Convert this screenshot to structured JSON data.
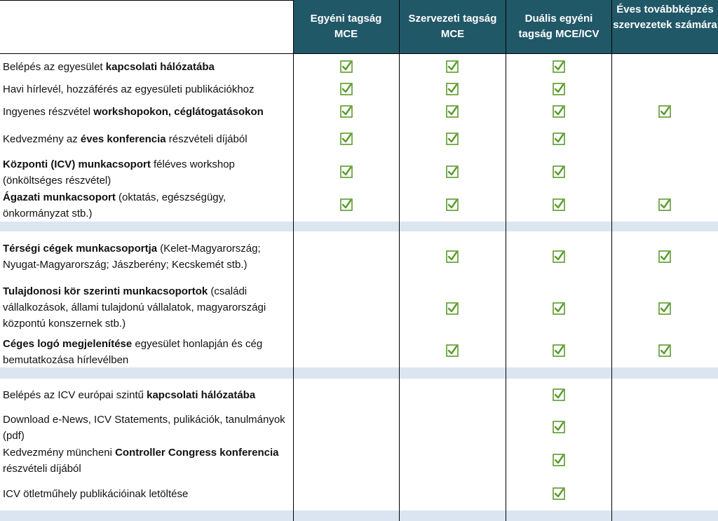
{
  "columns": [
    "Egyéni tagság MCE",
    "Szervezeti tagság MCE",
    "Duális egyéni tagság MCE/ICV",
    "Éves továbbképzés szervezetek számára"
  ],
  "colors": {
    "header_bg": "#215868",
    "band": "#dbe5f1",
    "check": "#5b9a2c"
  },
  "sections": [
    {
      "rows": [
        {
          "parts": [
            {
              "t": "Belépés az egyesület ",
              "b": false
            },
            {
              "t": "kapcsolati hálózatába",
              "b": true
            }
          ],
          "checks": [
            true,
            true,
            true,
            false
          ]
        },
        {
          "parts": [
            {
              "t": "Havi hírlevél, hozzáférés az egyesületi publikációkhoz",
              "b": false
            }
          ],
          "checks": [
            true,
            true,
            true,
            false
          ]
        },
        {
          "parts": [
            {
              "t": "Ingyenes részvétel ",
              "b": false
            },
            {
              "t": "workshopokon, céglátogatásokon",
              "b": true
            }
          ],
          "checks": [
            true,
            true,
            true,
            true
          ]
        },
        {
          "parts": [
            {
              "t": "Kedvezmény az ",
              "b": false
            },
            {
              "t": "éves konferencia",
              "b": true
            },
            {
              "t": " részvételi díjából",
              "b": false
            }
          ],
          "checks": [
            true,
            true,
            true,
            false
          ]
        },
        {
          "parts": [
            {
              "t": "Központi (ICV) munkacsoport",
              "b": true
            },
            {
              "t": " féléves workshop (önköltséges részvétel)",
              "b": false
            }
          ],
          "checks": [
            true,
            true,
            true,
            false
          ]
        },
        {
          "parts": [
            {
              "t": "Ágazati munkacsoport",
              "b": true
            },
            {
              "t": " (oktatás, egészségügy, önkormányzat stb.)",
              "b": false
            }
          ],
          "checks": [
            true,
            true,
            true,
            true
          ]
        }
      ]
    },
    {
      "rows": [
        {
          "parts": [
            {
              "t": "Térségi cégek munkacsoportja",
              "b": true
            },
            {
              "t": " (Kelet-Magyarország; Nyugat-Magyarország; Jászberény; Kecskemét stb.)",
              "b": false
            }
          ],
          "checks": [
            false,
            true,
            true,
            true
          ]
        },
        {
          "parts": [
            {
              "t": "Tulajdonosi kör szerinti munkacsoportok",
              "b": true
            },
            {
              "t": " (családi vállalkozások, állami tulajdonú vállalatok, magyarországi központú konszernek stb.)",
              "b": false
            }
          ],
          "checks": [
            false,
            true,
            true,
            true
          ]
        },
        {
          "parts": [
            {
              "t": "Céges logó megjelenítése",
              "b": true
            },
            {
              "t": " egyesület honlapján és cég bemutatkozása hírlevélben",
              "b": false
            }
          ],
          "checks": [
            false,
            true,
            true,
            true
          ]
        }
      ]
    },
    {
      "rows": [
        {
          "parts": [
            {
              "t": "Belépés az ICV európai szintű ",
              "b": false
            },
            {
              "t": "kapcsolati hálózatába",
              "b": true
            }
          ],
          "checks": [
            false,
            false,
            true,
            false
          ]
        },
        {
          "parts": [
            {
              "t": "Download e-News, ICV Statements, pulikációk, tanulmányok (pdf)",
              "b": false
            }
          ],
          "checks": [
            false,
            false,
            true,
            false
          ]
        },
        {
          "parts": [
            {
              "t": "Kedvezmény müncheni ",
              "b": false
            },
            {
              "t": "Controller Congress konferencia",
              "b": true
            },
            {
              "t": " részvételi díjából",
              "b": false
            }
          ],
          "checks": [
            false,
            false,
            true,
            false
          ]
        },
        {
          "parts": [
            {
              "t": "ICV ötletműhely publikációinak letöltése",
              "b": false
            }
          ],
          "checks": [
            false,
            false,
            true,
            false
          ]
        }
      ]
    }
  ]
}
